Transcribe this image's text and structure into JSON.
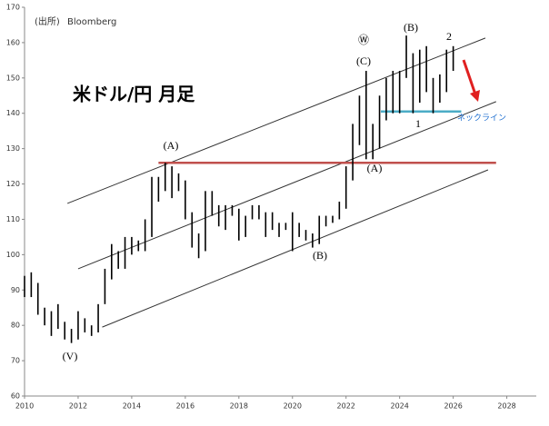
{
  "chart_data": {
    "type": "range_bar",
    "title": "米ドル/円 月足",
    "source": "(出所)",
    "source_name": "Bloomberg",
    "xlim": [
      2010,
      2029.1
    ],
    "xticks": [
      2010,
      2012,
      2014,
      2016,
      2018,
      2020,
      2022,
      2024,
      2026,
      2028
    ],
    "ylim": [
      60,
      170
    ],
    "yticks": [
      60,
      70,
      80,
      90,
      100,
      110,
      120,
      130,
      140,
      150,
      160,
      170
    ],
    "color": "#000000",
    "x": [
      2010.0,
      2010.25,
      2010.5,
      2010.75,
      2011.0,
      2011.25,
      2011.5,
      2011.75,
      2012.0,
      2012.25,
      2012.5,
      2012.75,
      2013.0,
      2013.25,
      2013.5,
      2013.75,
      2014.0,
      2014.25,
      2014.5,
      2014.75,
      2015.0,
      2015.25,
      2015.5,
      2015.75,
      2016.0,
      2016.25,
      2016.5,
      2016.75,
      2017.0,
      2017.25,
      2017.5,
      2017.75,
      2018.0,
      2018.25,
      2018.5,
      2018.75,
      2019.0,
      2019.25,
      2019.5,
      2019.75,
      2020.0,
      2020.25,
      2020.5,
      2020.75,
      2021.0,
      2021.25,
      2021.5,
      2021.75,
      2022.0,
      2022.25,
      2022.5,
      2022.75,
      2023.0,
      2023.25,
      2023.5,
      2023.75,
      2024.0,
      2024.25,
      2024.5,
      2024.75,
      2025.0,
      2025.25,
      2025.5,
      2025.75,
      2026.0
    ],
    "low": [
      88,
      88,
      83,
      80,
      77,
      79,
      76,
      75,
      76,
      78,
      77,
      78,
      86,
      93,
      96,
      96,
      100,
      101,
      101,
      105,
      115,
      118,
      116,
      118,
      110,
      102,
      99,
      101,
      111,
      108,
      107,
      111,
      104,
      105,
      110,
      110,
      105,
      107,
      105,
      107,
      101,
      105,
      104,
      102,
      103,
      108,
      109,
      110,
      113,
      121,
      131,
      127,
      127,
      130,
      138,
      140,
      140,
      150,
      140,
      143,
      146,
      140,
      143,
      146,
      152
    ],
    "high": [
      94,
      95,
      92,
      85,
      84,
      86,
      81,
      79,
      84,
      82,
      80,
      86,
      96,
      103,
      101,
      105,
      105,
      104,
      110,
      122,
      122,
      126,
      125,
      123,
      121,
      112,
      106,
      118,
      118,
      114,
      114,
      114,
      113,
      111,
      114,
      114,
      112,
      112,
      109,
      109,
      112,
      109,
      107,
      106,
      111,
      111,
      111,
      115,
      125,
      137,
      145,
      152,
      137,
      145,
      150,
      152,
      152,
      162,
      157,
      158,
      159,
      150,
      151,
      158,
      159
    ],
    "trend_lines": [
      {
        "color": "#333333",
        "x": [
          2011.6,
          2027.2
        ],
        "y": [
          114.5,
          161.3
        ]
      },
      {
        "color": "#333333",
        "x": [
          2012.0,
          2027.6
        ],
        "y": [
          96,
          143.3
        ]
      },
      {
        "color": "#333333",
        "x": [
          2012.9,
          2027.3
        ],
        "y": [
          79.5,
          124
        ]
      },
      {
        "color": "#c0504d",
        "x": [
          2015.0,
          2027.6
        ],
        "y": [
          126,
          126
        ]
      },
      {
        "color": "#4bacc6",
        "x": [
          2023.3,
          2026.3
        ],
        "y": [
          140.5,
          140.5
        ]
      }
    ],
    "annotations": [
      "(A)",
      "(B)",
      "(C)",
      "Ⓦ",
      "(A)",
      "(B)",
      "(V)",
      "1",
      "2",
      "ネックライン"
    ]
  }
}
